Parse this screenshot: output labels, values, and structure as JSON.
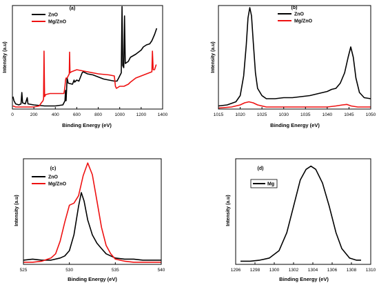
{
  "chart_data": [
    {
      "type": "line",
      "panel_label": "(a)",
      "xlabel": "Binding Energy (eV)",
      "ylabel": "Intensity (a.u)",
      "xlim": [
        0,
        1400
      ],
      "ylim": [
        0,
        1
      ],
      "x_ticks": [
        "0",
        "200",
        "400",
        "600",
        "800",
        "1000",
        "1200",
        "1400"
      ],
      "legend_position": "top-left",
      "series": [
        {
          "name": "ZnO",
          "color": "#000000",
          "points": [
            [
              5,
              0.12
            ],
            [
              15,
              0.08
            ],
            [
              30,
              0.05
            ],
            [
              60,
              0.04
            ],
            [
              80,
              0.05
            ],
            [
              88,
              0.16
            ],
            [
              95,
              0.06
            ],
            [
              120,
              0.05
            ],
            [
              138,
              0.11
            ],
            [
              145,
              0.05
            ],
            [
              200,
              0.04
            ],
            [
              300,
              0.03
            ],
            [
              400,
              0.03
            ],
            [
              470,
              0.04
            ],
            [
              490,
              0.08
            ],
            [
              495,
              0.18
            ],
            [
              500,
              0.08
            ],
            [
              510,
              0.3
            ],
            [
              520,
              0.25
            ],
            [
              560,
              0.24
            ],
            [
              575,
              0.28
            ],
            [
              580,
              0.26
            ],
            [
              600,
              0.28
            ],
            [
              620,
              0.27
            ],
            [
              650,
              0.35
            ],
            [
              660,
              0.36
            ],
            [
              700,
              0.34
            ],
            [
              750,
              0.33
            ],
            [
              800,
              0.31
            ],
            [
              850,
              0.29
            ],
            [
              900,
              0.28
            ],
            [
              950,
              0.27
            ],
            [
              975,
              0.27
            ],
            [
              990,
              0.3
            ],
            [
              1000,
              0.32
            ],
            [
              1015,
              0.35
            ],
            [
              1022,
              0.99
            ],
            [
              1028,
              0.42
            ],
            [
              1038,
              0.4
            ],
            [
              1045,
              0.9
            ],
            [
              1052,
              0.44
            ],
            [
              1080,
              0.46
            ],
            [
              1100,
              0.5
            ],
            [
              1150,
              0.53
            ],
            [
              1200,
              0.57
            ],
            [
              1220,
              0.6
            ],
            [
              1250,
              0.62
            ],
            [
              1280,
              0.63
            ],
            [
              1300,
              0.66
            ],
            [
              1325,
              0.72
            ],
            [
              1345,
              0.78
            ]
          ]
        },
        {
          "name": "Mg/ZnO",
          "color": "#ee1111",
          "points": [
            [
              5,
              0.03
            ],
            [
              30,
              0.02
            ],
            [
              80,
              0.02
            ],
            [
              150,
              0.02
            ],
            [
              200,
              0.02
            ],
            [
              250,
              0.03
            ],
            [
              270,
              0.06
            ],
            [
              285,
              0.08
            ],
            [
              290,
              0.1
            ],
            [
              295,
              0.56
            ],
            [
              300,
              0.12
            ],
            [
              310,
              0.14
            ],
            [
              350,
              0.15
            ],
            [
              400,
              0.15
            ],
            [
              450,
              0.15
            ],
            [
              480,
              0.15
            ],
            [
              485,
              0.18
            ],
            [
              490,
              0.22
            ],
            [
              495,
              0.28
            ],
            [
              500,
              0.3
            ],
            [
              510,
              0.3
            ],
            [
              520,
              0.32
            ],
            [
              530,
              0.34
            ],
            [
              533,
              0.55
            ],
            [
              537,
              0.35
            ],
            [
              550,
              0.36
            ],
            [
              600,
              0.38
            ],
            [
              700,
              0.36
            ],
            [
              800,
              0.34
            ],
            [
              900,
              0.33
            ],
            [
              950,
              0.32
            ],
            [
              960,
              0.22
            ],
            [
              970,
              0.2
            ],
            [
              1000,
              0.22
            ],
            [
              1040,
              0.22
            ],
            [
              1080,
              0.24
            ],
            [
              1100,
              0.26
            ],
            [
              1150,
              0.3
            ],
            [
              1200,
              0.32
            ],
            [
              1250,
              0.34
            ],
            [
              1300,
              0.36
            ],
            [
              1305,
              0.56
            ],
            [
              1312,
              0.38
            ],
            [
              1325,
              0.38
            ],
            [
              1340,
              0.43
            ]
          ]
        }
      ]
    },
    {
      "type": "line",
      "panel_label": "(b)",
      "xlabel": "Binding Energy (eV)",
      "ylabel": "Intensity (a.u)",
      "xlim": [
        1015,
        1050
      ],
      "ylim": [
        0,
        1
      ],
      "x_ticks": [
        "1015",
        "1020",
        "1025",
        "1030",
        "1035",
        "1040",
        "1045",
        "1050"
      ],
      "legend_position": "top-center",
      "series": [
        {
          "name": "ZnO",
          "color": "#000000",
          "points": [
            [
              1015,
              0.03
            ],
            [
              1017,
              0.04
            ],
            [
              1019,
              0.07
            ],
            [
              1020,
              0.13
            ],
            [
              1020.8,
              0.32
            ],
            [
              1021.4,
              0.62
            ],
            [
              1021.8,
              0.88
            ],
            [
              1022.2,
              0.98
            ],
            [
              1022.6,
              0.9
            ],
            [
              1023,
              0.65
            ],
            [
              1023.5,
              0.35
            ],
            [
              1024,
              0.2
            ],
            [
              1025,
              0.13
            ],
            [
              1026,
              0.1
            ],
            [
              1028,
              0.1
            ],
            [
              1030,
              0.11
            ],
            [
              1032,
              0.11
            ],
            [
              1034,
              0.12
            ],
            [
              1036,
              0.13
            ],
            [
              1038,
              0.15
            ],
            [
              1040,
              0.17
            ],
            [
              1041,
              0.19
            ],
            [
              1042,
              0.2
            ],
            [
              1043,
              0.25
            ],
            [
              1044,
              0.35
            ],
            [
              1044.8,
              0.5
            ],
            [
              1045.4,
              0.6
            ],
            [
              1046,
              0.5
            ],
            [
              1046.6,
              0.3
            ],
            [
              1047.4,
              0.16
            ],
            [
              1048.5,
              0.11
            ],
            [
              1050,
              0.1
            ]
          ]
        },
        {
          "name": "Mg/ZnO",
          "color": "#ee1111",
          "points": [
            [
              1015,
              0.01
            ],
            [
              1018,
              0.02
            ],
            [
              1020,
              0.04
            ],
            [
              1021,
              0.06
            ],
            [
              1022,
              0.07
            ],
            [
              1023,
              0.06
            ],
            [
              1024,
              0.04
            ],
            [
              1026,
              0.02
            ],
            [
              1030,
              0.02
            ],
            [
              1035,
              0.02
            ],
            [
              1040,
              0.02
            ],
            [
              1042,
              0.03
            ],
            [
              1043.5,
              0.04
            ],
            [
              1044.5,
              0.045
            ],
            [
              1045.5,
              0.03
            ],
            [
              1047,
              0.02
            ],
            [
              1050,
              0.02
            ]
          ]
        }
      ]
    },
    {
      "type": "line",
      "panel_label": "(c)",
      "xlabel": "Binding Energy (eV)",
      "ylabel": "Intensity (a.u)",
      "xlim": [
        525,
        540
      ],
      "ylim": [
        0,
        1
      ],
      "x_ticks": [
        "525",
        "530",
        "535",
        "540"
      ],
      "legend_position": "top-left",
      "series": [
        {
          "name": "ZnO",
          "color": "#000000",
          "points": [
            [
              525,
              0.04
            ],
            [
              526,
              0.05
            ],
            [
              527,
              0.04
            ],
            [
              528,
              0.04
            ],
            [
              529,
              0.06
            ],
            [
              529.5,
              0.08
            ],
            [
              530,
              0.13
            ],
            [
              530.5,
              0.28
            ],
            [
              531,
              0.55
            ],
            [
              531.3,
              0.68
            ],
            [
              531.6,
              0.6
            ],
            [
              532,
              0.42
            ],
            [
              532.5,
              0.28
            ],
            [
              533,
              0.2
            ],
            [
              533.5,
              0.15
            ],
            [
              534,
              0.1
            ],
            [
              534.5,
              0.08
            ],
            [
              535,
              0.06
            ],
            [
              536,
              0.05
            ],
            [
              537,
              0.05
            ],
            [
              538,
              0.04
            ],
            [
              539,
              0.04
            ],
            [
              540,
              0.04
            ]
          ]
        },
        {
          "name": "Mg/ZnO",
          "color": "#ee1111",
          "points": [
            [
              525,
              0.02
            ],
            [
              526,
              0.02
            ],
            [
              527,
              0.03
            ],
            [
              528,
              0.06
            ],
            [
              528.5,
              0.1
            ],
            [
              529,
              0.22
            ],
            [
              529.5,
              0.4
            ],
            [
              530,
              0.56
            ],
            [
              530.5,
              0.58
            ],
            [
              531,
              0.65
            ],
            [
              531.5,
              0.84
            ],
            [
              532,
              0.96
            ],
            [
              532.5,
              0.85
            ],
            [
              533,
              0.6
            ],
            [
              533.5,
              0.35
            ],
            [
              534,
              0.18
            ],
            [
              534.5,
              0.1
            ],
            [
              535,
              0.05
            ],
            [
              536,
              0.03
            ],
            [
              537,
              0.02
            ],
            [
              538,
              0.02
            ],
            [
              540,
              0.02
            ]
          ]
        }
      ]
    },
    {
      "type": "line",
      "panel_label": "(d)",
      "xlabel": "Binding Energy (eV)",
      "ylabel": "Intensity (a.u)",
      "xlim": [
        1296,
        1310
      ],
      "ylim": [
        0,
        1
      ],
      "x_ticks": [
        "1296",
        "1298",
        "1300",
        "1302",
        "1304",
        "1306",
        "1308",
        "1310"
      ],
      "legend_position": "top-left",
      "series": [
        {
          "name": "Mg",
          "color": "#000000",
          "points": [
            [
              1296.5,
              0.03
            ],
            [
              1297.5,
              0.03
            ],
            [
              1298.5,
              0.04
            ],
            [
              1299.5,
              0.06
            ],
            [
              1300.5,
              0.13
            ],
            [
              1301.3,
              0.3
            ],
            [
              1302,
              0.55
            ],
            [
              1302.7,
              0.8
            ],
            [
              1303.3,
              0.9
            ],
            [
              1303.8,
              0.93
            ],
            [
              1304.3,
              0.9
            ],
            [
              1305,
              0.77
            ],
            [
              1305.7,
              0.55
            ],
            [
              1306.4,
              0.3
            ],
            [
              1307,
              0.15
            ],
            [
              1307.8,
              0.06
            ],
            [
              1308.5,
              0.04
            ],
            [
              1309,
              0.04
            ]
          ]
        }
      ]
    }
  ]
}
